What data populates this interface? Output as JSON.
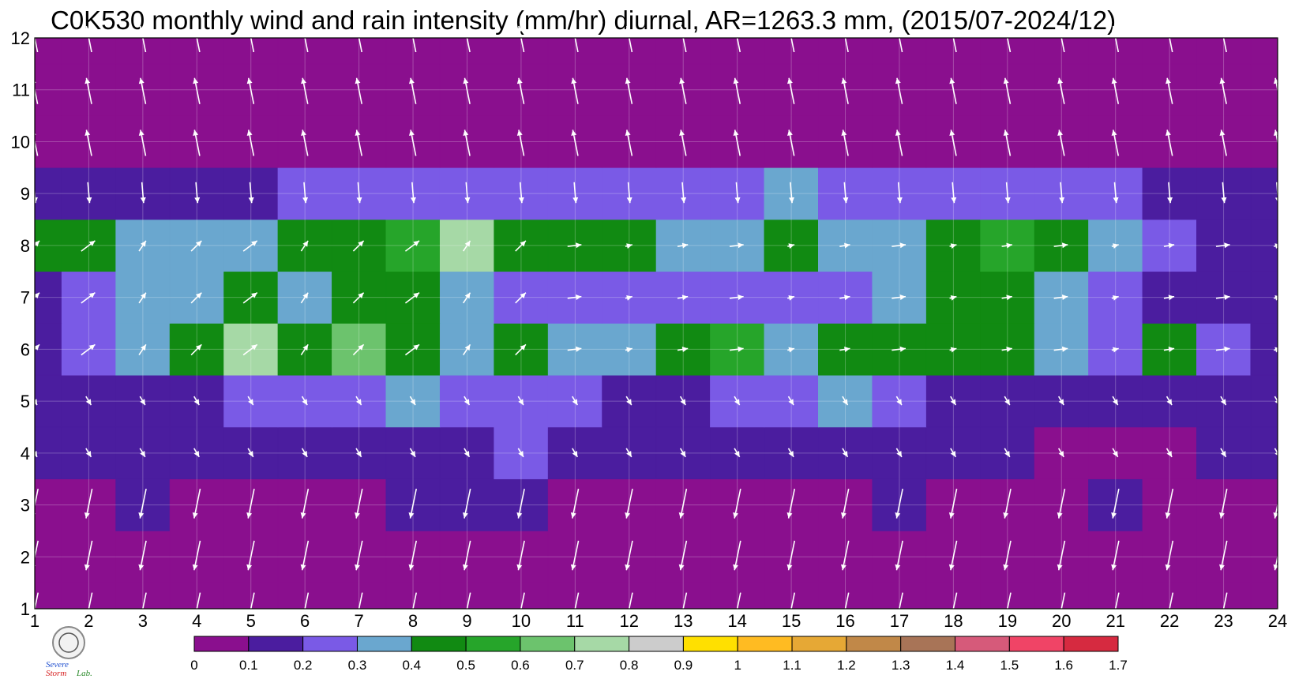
{
  "chart_data": {
    "type": "heatmap",
    "title": "C0K530 monthly wind and rain intensity (mm/hr) diurnal, AR=1263.3 mm, (2015/07-2024/12)",
    "xlabel": "",
    "ylabel": "",
    "xlim": [
      1,
      24
    ],
    "ylim": [
      1,
      12
    ],
    "x_ticks": [
      "1",
      "2",
      "3",
      "4",
      "5",
      "6",
      "7",
      "8",
      "9",
      "10",
      "11",
      "12",
      "13",
      "14",
      "15",
      "16",
      "17",
      "18",
      "19",
      "20",
      "21",
      "22",
      "23",
      "24"
    ],
    "y_ticks": [
      "1",
      "2",
      "3",
      "4",
      "5",
      "6",
      "7",
      "8",
      "9",
      "10",
      "11",
      "12"
    ],
    "grid": true,
    "overlay": "wind vectors (white arrows)",
    "colorbar": {
      "placement": "bottom",
      "levels": [
        0,
        0.1,
        0.2,
        0.3,
        0.4,
        0.5,
        0.6,
        0.7,
        0.8,
        0.9,
        1,
        1.1,
        1.2,
        1.3,
        1.4,
        1.5,
        1.6,
        1.7
      ],
      "labels": [
        "0",
        "0.1",
        "0.2",
        "0.3",
        "0.4",
        "0.5",
        "0.6",
        "0.7",
        "0.8",
        "0.9",
        "1",
        "1.1",
        "1.2",
        "1.3",
        "1.4",
        "1.5",
        "1.6",
        "1.7"
      ],
      "colors": [
        "#8a0f8e",
        "#4b1d9f",
        "#7a5ae6",
        "#6aa7cf",
        "#118a12",
        "#26a52a",
        "#6cc36d",
        "#a6d9a6",
        "#cccccc",
        "#ffe000",
        "#ffbb22",
        "#e6a835",
        "#c18848",
        "#a87457",
        "#d65a7a",
        "#f04466",
        "#d62a40"
      ]
    },
    "rows": [
      {
        "month": 1,
        "values": [
          0.05,
          0.05,
          0.05,
          0.05,
          0.05,
          0.05,
          0.05,
          0.05,
          0.05,
          0.05,
          0.05,
          0.05,
          0.05,
          0.05,
          0.05,
          0.05,
          0.05,
          0.05,
          0.05,
          0.05,
          0.05,
          0.05,
          0.05,
          0.05
        ]
      },
      {
        "month": 2,
        "values": [
          0.05,
          0.05,
          0.05,
          0.05,
          0.05,
          0.05,
          0.05,
          0.05,
          0.05,
          0.05,
          0.05,
          0.05,
          0.05,
          0.05,
          0.05,
          0.05,
          0.05,
          0.05,
          0.05,
          0.05,
          0.05,
          0.05,
          0.05,
          0.05
        ]
      },
      {
        "month": 3,
        "values": [
          0.05,
          0.05,
          0.1,
          0.05,
          0.05,
          0.05,
          0.05,
          0.15,
          0.15,
          0.15,
          0.05,
          0.05,
          0.05,
          0.05,
          0.05,
          0.05,
          0.1,
          0.05,
          0.05,
          0.05,
          0.1,
          0.05,
          0.05,
          0.05
        ]
      },
      {
        "month": 4,
        "values": [
          0.1,
          0.1,
          0.15,
          0.15,
          0.15,
          0.15,
          0.15,
          0.15,
          0.1,
          0.2,
          0.15,
          0.15,
          0.15,
          0.15,
          0.15,
          0.15,
          0.15,
          0.15,
          0.1,
          0.05,
          0.05,
          0.05,
          0.15,
          0.1
        ]
      },
      {
        "month": 5,
        "values": [
          0.15,
          0.15,
          0.15,
          0.15,
          0.25,
          0.2,
          0.25,
          0.3,
          0.2,
          0.2,
          0.2,
          0.15,
          0.15,
          0.2,
          0.25,
          0.3,
          0.25,
          0.15,
          0.15,
          0.1,
          0.1,
          0.15,
          0.15,
          0.1
        ]
      },
      {
        "month": 6,
        "values": [
          0.15,
          0.25,
          0.3,
          0.45,
          0.75,
          0.45,
          0.65,
          0.45,
          0.35,
          0.45,
          0.35,
          0.3,
          0.45,
          0.55,
          0.3,
          0.45,
          0.45,
          0.45,
          0.4,
          0.3,
          0.25,
          0.45,
          0.25,
          0.15
        ]
      },
      {
        "month": 7,
        "values": [
          0.15,
          0.2,
          0.3,
          0.35,
          0.4,
          0.35,
          0.45,
          0.4,
          0.3,
          0.25,
          0.25,
          0.25,
          0.25,
          0.2,
          0.25,
          0.25,
          0.3,
          0.45,
          0.45,
          0.35,
          0.25,
          0.15,
          0.15,
          0.15
        ]
      },
      {
        "month": 8,
        "values": [
          0.45,
          0.4,
          0.35,
          0.35,
          0.35,
          0.45,
          0.45,
          0.55,
          0.75,
          0.45,
          0.45,
          0.45,
          0.35,
          0.35,
          0.45,
          0.35,
          0.35,
          0.45,
          0.55,
          0.45,
          0.3,
          0.2,
          0.15,
          0.15
        ]
      },
      {
        "month": 9,
        "values": [
          0.15,
          0.15,
          0.15,
          0.15,
          0.15,
          0.2,
          0.2,
          0.25,
          0.25,
          0.25,
          0.25,
          0.2,
          0.25,
          0.25,
          0.3,
          0.25,
          0.25,
          0.25,
          0.25,
          0.25,
          0.2,
          0.15,
          0.1,
          0.1
        ]
      },
      {
        "month": 10,
        "values": [
          0.05,
          0.05,
          0.05,
          0.05,
          0.05,
          0.05,
          0.05,
          0.05,
          0.05,
          0.05,
          0.05,
          0.05,
          0.05,
          0.05,
          0.05,
          0.05,
          0.05,
          0.05,
          0.05,
          0.05,
          0.05,
          0.05,
          0.05,
          0.05
        ]
      },
      {
        "month": 11,
        "values": [
          0.05,
          0.05,
          0.05,
          0.05,
          0.05,
          0.05,
          0.05,
          0.05,
          0.05,
          0.05,
          0.05,
          0.05,
          0.05,
          0.05,
          0.05,
          0.05,
          0.05,
          0.05,
          0.05,
          0.05,
          0.05,
          0.05,
          0.05,
          0.05
        ]
      },
      {
        "month": 12,
        "values": [
          0.05,
          0.05,
          0.05,
          0.05,
          0.05,
          0.05,
          0.05,
          0.05,
          0.05,
          0.05,
          0.05,
          0.05,
          0.05,
          0.05,
          0.05,
          0.05,
          0.05,
          0.05,
          0.05,
          0.05,
          0.05,
          0.05,
          0.05,
          0.05
        ]
      }
    ]
  },
  "logo": {
    "line1": "Severe",
    "line2": "Storm",
    "line3": "Lab."
  }
}
